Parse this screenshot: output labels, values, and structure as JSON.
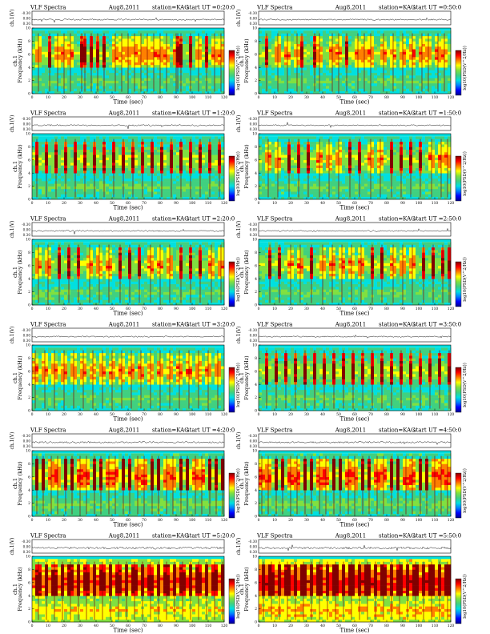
{
  "page": {
    "figure_title": "VLF Spectra",
    "date_label": "Aug8,2011",
    "station_label": "station=KAG",
    "start_prefix": "start  UT ="
  },
  "axes_text": {
    "waveform_ylabel": "ch.1(V)",
    "freq_ylabel_prefix": "ch.1",
    "freq_ylabel": "Frequency (kHz)",
    "time_xlabel": "Time (sec)",
    "colorbar_label": "log10(PSD(V^2/Hz))"
  },
  "colors": {
    "colormap": [
      "#00008b",
      "#0000ff",
      "#0080ff",
      "#00e0e0",
      "#40d080",
      "#80e040",
      "#ffff00",
      "#ff8000",
      "#ff0000",
      "#800000"
    ],
    "trace": "#000000",
    "background": "#ffffff"
  },
  "chart_data": [
    {
      "type": "heatmap",
      "title": "start UT =0:20:0",
      "start_ut": "0:20:0",
      "x": [
        0,
        10,
        20,
        30,
        40,
        50,
        60,
        70,
        80,
        90,
        100,
        110,
        120
      ],
      "xlabel": "Time (sec)",
      "xlim": [
        0,
        120
      ],
      "freq_ticks": [
        0,
        2,
        4,
        6,
        8,
        10
      ],
      "ylim": [
        0,
        10
      ],
      "waveform_ticks": [
        "-0.30",
        "0.00",
        "0.30"
      ],
      "intensity": "moderate",
      "burst_times": [
        4,
        11,
        16,
        20,
        24,
        31,
        33,
        37,
        41,
        45,
        52,
        56,
        60,
        64,
        68,
        72,
        76,
        80,
        84,
        90,
        91,
        93,
        99,
        104,
        109,
        114,
        118
      ]
    },
    {
      "type": "heatmap",
      "title": "start UT =0:50:0",
      "start_ut": "0:50:0",
      "x": [
        0,
        10,
        20,
        30,
        40,
        50,
        60,
        70,
        80,
        90,
        100,
        110,
        120
      ],
      "xlabel": "Time (sec)",
      "xlim": [
        0,
        120
      ],
      "freq_ticks": [
        0,
        2,
        4,
        6,
        8,
        10
      ],
      "ylim": [
        0,
        10
      ],
      "waveform_ticks": [
        "-0.30",
        "0.00",
        "0.30"
      ],
      "intensity": "moderate",
      "burst_times": [
        5,
        12,
        18,
        24,
        27,
        35,
        38,
        46,
        50,
        55,
        62,
        66,
        70,
        78,
        84,
        90,
        96,
        102,
        106,
        112,
        116
      ]
    },
    {
      "type": "heatmap",
      "title": "start UT =1:20:0",
      "start_ut": "1:20:0",
      "x": [
        0,
        10,
        20,
        30,
        40,
        50,
        60,
        70,
        80,
        90,
        100,
        110,
        120
      ],
      "xlabel": "Time (sec)",
      "xlim": [
        0,
        120
      ],
      "freq_ticks": [
        0,
        2,
        4,
        6,
        8,
        10
      ],
      "ylim": [
        0,
        10
      ],
      "waveform_ticks": [
        "-0.30",
        "0.00",
        "0.30"
      ],
      "intensity": "moderate",
      "burst_times": [
        3,
        9,
        15,
        21,
        27,
        33,
        39,
        45,
        51,
        57,
        63,
        69,
        75,
        81,
        87,
        93,
        99,
        105,
        111,
        117
      ]
    },
    {
      "type": "heatmap",
      "title": "start UT =1:50:0",
      "start_ut": "1:50:0",
      "x": [
        0,
        10,
        20,
        30,
        40,
        50,
        60,
        70,
        80,
        90,
        100,
        110,
        120
      ],
      "xlabel": "Time (sec)",
      "xlim": [
        0,
        120
      ],
      "freq_ticks": [
        0,
        2,
        4,
        6,
        8,
        10
      ],
      "ylim": [
        0,
        10
      ],
      "waveform_ticks": [
        "-0.30",
        "0.00",
        "0.30"
      ],
      "intensity": "moderate",
      "burst_times": [
        6,
        12,
        19,
        25,
        31,
        38,
        44,
        50,
        57,
        63,
        70,
        76,
        83,
        89,
        95,
        101,
        108,
        114,
        118
      ]
    },
    {
      "type": "heatmap",
      "title": "start UT =2:20:0",
      "start_ut": "2:20:0",
      "x": [
        0,
        10,
        20,
        30,
        40,
        50,
        60,
        70,
        80,
        90,
        100,
        110,
        120
      ],
      "xlabel": "Time (sec)",
      "xlim": [
        0,
        120
      ],
      "freq_ticks": [
        0,
        2,
        4,
        6,
        8,
        10
      ],
      "ylim": [
        0,
        10
      ],
      "waveform_ticks": [
        "-0.30",
        "0.00",
        "0.30"
      ],
      "intensity": "moderate",
      "burst_times": [
        4,
        10,
        17,
        23,
        29,
        36,
        42,
        48,
        55,
        61,
        67,
        74,
        80,
        86,
        93,
        99,
        105,
        112,
        118
      ]
    },
    {
      "type": "heatmap",
      "title": "start UT =2:50:0",
      "start_ut": "2:50:0",
      "x": [
        0,
        10,
        20,
        30,
        40,
        50,
        60,
        70,
        80,
        90,
        100,
        110,
        120
      ],
      "xlabel": "Time (sec)",
      "xlim": [
        0,
        120
      ],
      "freq_ticks": [
        0,
        2,
        4,
        6,
        8,
        10
      ],
      "ylim": [
        0,
        10
      ],
      "waveform_ticks": [
        "-0.30",
        "0.00",
        "0.30"
      ],
      "intensity": "moderate",
      "burst_times": [
        7,
        13,
        20,
        26,
        33,
        40,
        46,
        52,
        58,
        64,
        71,
        77,
        84,
        90,
        96,
        103,
        109,
        115,
        119
      ]
    },
    {
      "type": "heatmap",
      "title": "start UT =3:20:0",
      "start_ut": "3:20:0",
      "x": [
        0,
        10,
        20,
        30,
        40,
        50,
        60,
        70,
        80,
        90,
        100,
        110,
        120
      ],
      "xlabel": "Time (sec)",
      "xlim": [
        0,
        120
      ],
      "freq_ticks": [
        0,
        2,
        4,
        6,
        8,
        10
      ],
      "ylim": [
        0,
        10
      ],
      "waveform_ticks": [
        "-0.30",
        "0.00",
        "0.30"
      ],
      "intensity": "moderate",
      "burst_times": [
        2,
        8,
        14,
        20,
        26,
        32,
        38,
        44,
        50,
        56,
        62,
        68,
        74,
        80,
        86,
        92,
        98,
        104,
        110,
        116
      ]
    },
    {
      "type": "heatmap",
      "title": "start UT =3:50:0",
      "start_ut": "3:50:0",
      "x": [
        0,
        10,
        20,
        30,
        40,
        50,
        60,
        70,
        80,
        90,
        100,
        110,
        120
      ],
      "xlabel": "Time (sec)",
      "xlim": [
        0,
        120
      ],
      "freq_ticks": [
        0,
        2,
        4,
        6,
        8,
        10
      ],
      "ylim": [
        0,
        10
      ],
      "waveform_ticks": [
        "-0.30",
        "0.00",
        "0.30"
      ],
      "intensity": "moderate",
      "burst_times": [
        5,
        11,
        17,
        23,
        29,
        35,
        41,
        47,
        53,
        59,
        65,
        71,
        77,
        83,
        89,
        95,
        101,
        107,
        113,
        119
      ]
    },
    {
      "type": "heatmap",
      "title": "start UT =4:20:0",
      "start_ut": "4:20:0",
      "x": [
        0,
        10,
        20,
        30,
        40,
        50,
        60,
        70,
        80,
        90,
        100,
        110,
        120
      ],
      "xlabel": "Time (sec)",
      "xlim": [
        0,
        120
      ],
      "freq_ticks": [
        0,
        2,
        4,
        6,
        8,
        10
      ],
      "ylim": [
        0,
        10
      ],
      "waveform_ticks": [
        "-0.30",
        "0.00",
        "0.30"
      ],
      "intensity": "strong",
      "burst_times": [
        3,
        7,
        12,
        16,
        21,
        25,
        30,
        34,
        39,
        43,
        48,
        52,
        57,
        61,
        66,
        70,
        75,
        79,
        84,
        88,
        93,
        97,
        102,
        106,
        111,
        115,
        119
      ]
    },
    {
      "type": "heatmap",
      "title": "start UT =4:50:0",
      "start_ut": "4:50:0",
      "x": [
        0,
        10,
        20,
        30,
        40,
        50,
        60,
        70,
        80,
        90,
        100,
        110,
        120
      ],
      "xlabel": "Time (sec)",
      "xlim": [
        0,
        120
      ],
      "freq_ticks": [
        0,
        2,
        4,
        6,
        8,
        10
      ],
      "ylim": [
        0,
        10
      ],
      "waveform_ticks": [
        "-0.30",
        "0.00",
        "0.30"
      ],
      "intensity": "strong",
      "burst_times": [
        2,
        6,
        11,
        15,
        20,
        24,
        29,
        33,
        38,
        42,
        47,
        51,
        56,
        60,
        65,
        69,
        74,
        78,
        83,
        87,
        92,
        96,
        101,
        105,
        110,
        114,
        118
      ]
    },
    {
      "type": "heatmap",
      "title": "start UT =5:20:0",
      "start_ut": "5:20:0",
      "x": [
        0,
        10,
        20,
        30,
        40,
        50,
        60,
        70,
        80,
        90,
        100,
        110,
        120
      ],
      "xlabel": "Time (sec)",
      "xlim": [
        0,
        120
      ],
      "freq_ticks": [
        0,
        2,
        4,
        6,
        8,
        10
      ],
      "ylim": [
        0,
        10
      ],
      "waveform_ticks": [
        "-0.30",
        "0.00",
        "0.30"
      ],
      "intensity": "very_strong",
      "burst_times": [
        4,
        9,
        14,
        19,
        24,
        29,
        34,
        39,
        44,
        49,
        54,
        59,
        64,
        69,
        74,
        79,
        84,
        89,
        94,
        99,
        104,
        109,
        114,
        119
      ]
    },
    {
      "type": "heatmap",
      "title": "start UT =5:50:0",
      "start_ut": "5:50:0",
      "x": [
        0,
        10,
        20,
        30,
        40,
        50,
        60,
        70,
        80,
        90,
        100,
        110,
        120
      ],
      "xlabel": "Time (sec)",
      "xlim": [
        0,
        120
      ],
      "freq_ticks": [
        0,
        2,
        4,
        6,
        8,
        10
      ],
      "ylim": [
        0,
        10
      ],
      "waveform_ticks": [
        "-0.30",
        "0.00",
        "0.30"
      ],
      "intensity": "extreme",
      "burst_times": [
        3,
        8,
        13,
        18,
        23,
        28,
        33,
        38,
        43,
        48,
        53,
        58,
        63,
        68,
        73,
        78,
        83,
        88,
        93,
        98,
        103,
        108,
        113,
        118
      ]
    }
  ]
}
